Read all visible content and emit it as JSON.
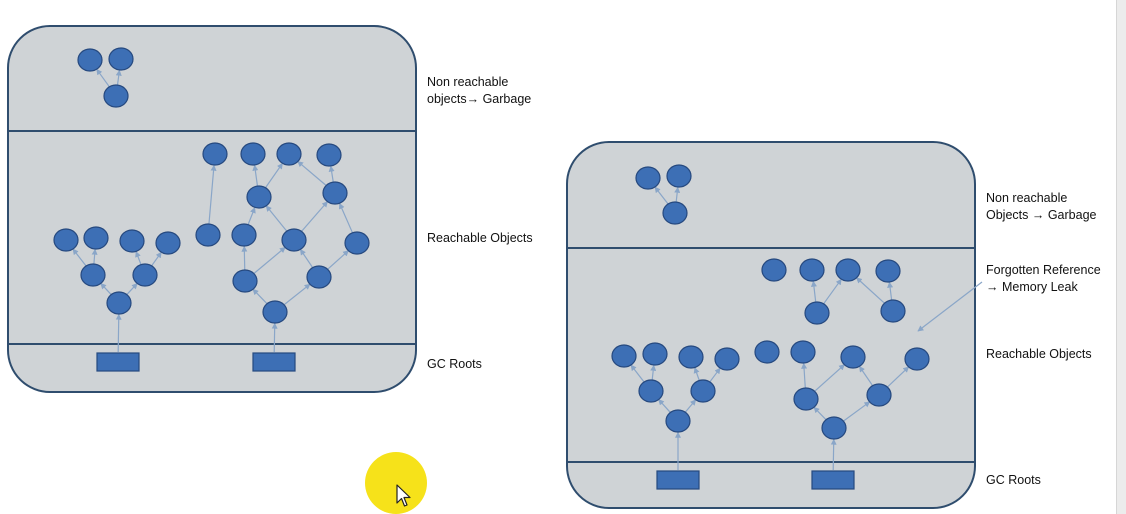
{
  "left_diagram": {
    "labels": {
      "non_reachable": "Non reachable\nobjects→ Garbage",
      "reachable": "Reachable Objects",
      "gc_roots": "GC Roots"
    }
  },
  "right_diagram": {
    "labels": {
      "non_reachable": "Non reachable\nObjects → Garbage",
      "forgotten": "Forgotten Reference\n→ Memory Leak",
      "reachable": "Reachable Objects",
      "gc_roots": "GC Roots"
    }
  },
  "colors": {
    "panel_fill": "#cfd3d6",
    "panel_border": "#2f4d6e",
    "node_fill": "#3d6fb5",
    "node_stroke": "#26497f",
    "edge": "#8aa6c8",
    "cursor_highlight": "#f6e21a"
  },
  "icons": {
    "cursor": "mouse-pointer-icon",
    "scrollbar": "scrollbar"
  }
}
